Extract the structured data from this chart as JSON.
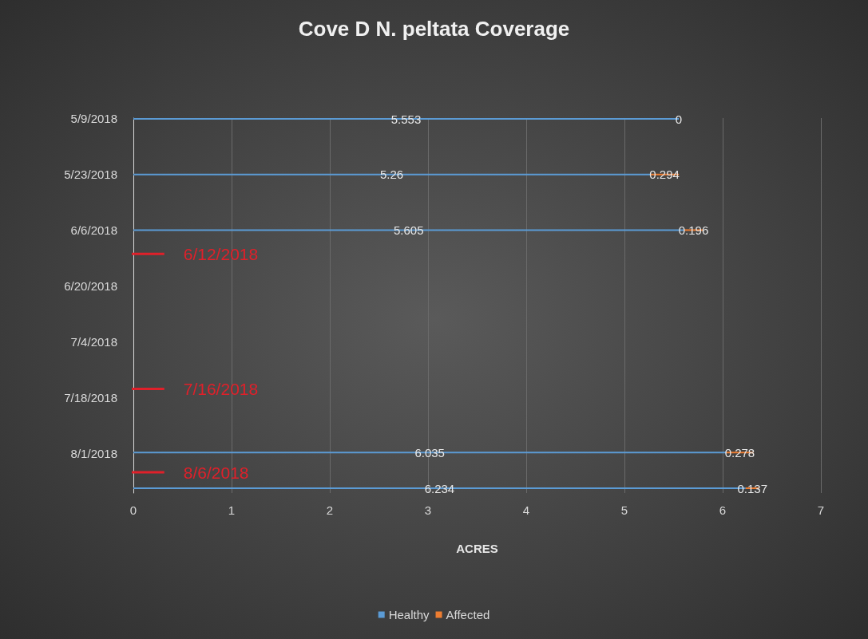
{
  "chart_data": {
    "type": "bar",
    "orientation": "horizontal",
    "stacked": true,
    "title": "Cove D N. peltata Coverage",
    "xlabel": "ACRES",
    "x": [
      "2018-05-09",
      "2018-05-23",
      "2018-06-06",
      "2018-08-01",
      "2018-08-10"
    ],
    "series": [
      {
        "name": "Healthy",
        "color": "#5b9bd5",
        "values": [
          5.553,
          5.26,
          5.605,
          6.035,
          6.234
        ]
      },
      {
        "name": "Affected",
        "color": "#ed7d31",
        "values": [
          0,
          0.294,
          0.196,
          0.278,
          0.137
        ]
      }
    ],
    "xlim": [
      0,
      7
    ],
    "xticks": [
      0,
      1,
      2,
      3,
      4,
      5,
      6,
      7
    ],
    "ylim": [
      "2018-08-11",
      "2018-05-09"
    ],
    "yticks": [
      {
        "value": "2018-05-09",
        "label": "5/9/2018"
      },
      {
        "value": "2018-05-23",
        "label": "5/23/2018"
      },
      {
        "value": "2018-06-06",
        "label": "6/6/2018"
      },
      {
        "value": "2018-06-20",
        "label": "6/20/2018"
      },
      {
        "value": "2018-07-04",
        "label": "7/4/2018"
      },
      {
        "value": "2018-07-18",
        "label": "7/18/2018"
      },
      {
        "value": "2018-08-01",
        "label": "8/1/2018"
      }
    ],
    "ref_lines": [
      {
        "axis": "y",
        "value": "2018-06-12",
        "label": "6/12/2018",
        "color": "#e0202a"
      },
      {
        "axis": "y",
        "value": "2018-07-16",
        "label": "7/16/2018",
        "color": "#e0202a"
      },
      {
        "axis": "y",
        "value": "2018-08-06",
        "label": "8/6/2018",
        "color": "#e0202a"
      }
    ],
    "data_labels": true,
    "grid": "x",
    "legend": "bottom"
  }
}
